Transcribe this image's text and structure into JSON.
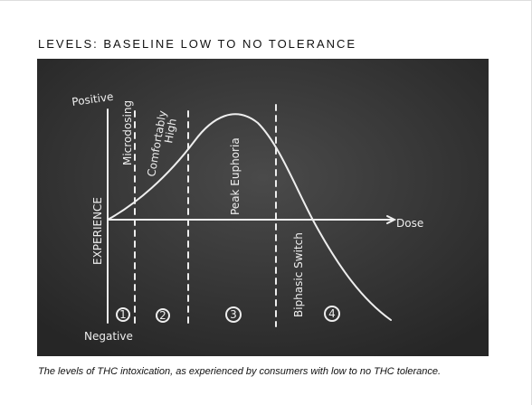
{
  "header": {
    "title": "LEVELS: BASELINE LOW TO NO TOLERANCE"
  },
  "figure": {
    "y_axis_top": "Positive",
    "y_axis_bottom": "Negative",
    "y_axis_label": "EXPERIENCE",
    "x_axis_label": "Dose",
    "zones": [
      {
        "lines": [
          "Microdosing"
        ],
        "number": "1"
      },
      {
        "lines": [
          "Comfortably",
          "High"
        ],
        "number": "2"
      },
      {
        "lines": [
          "Peak Euphoria"
        ],
        "number": "3"
      },
      {
        "lines": [
          "Biphasic Switch"
        ],
        "number": "4"
      }
    ]
  },
  "caption": "The levels of THC intoxication, as experienced by consumers with low to no THC tolerance."
}
